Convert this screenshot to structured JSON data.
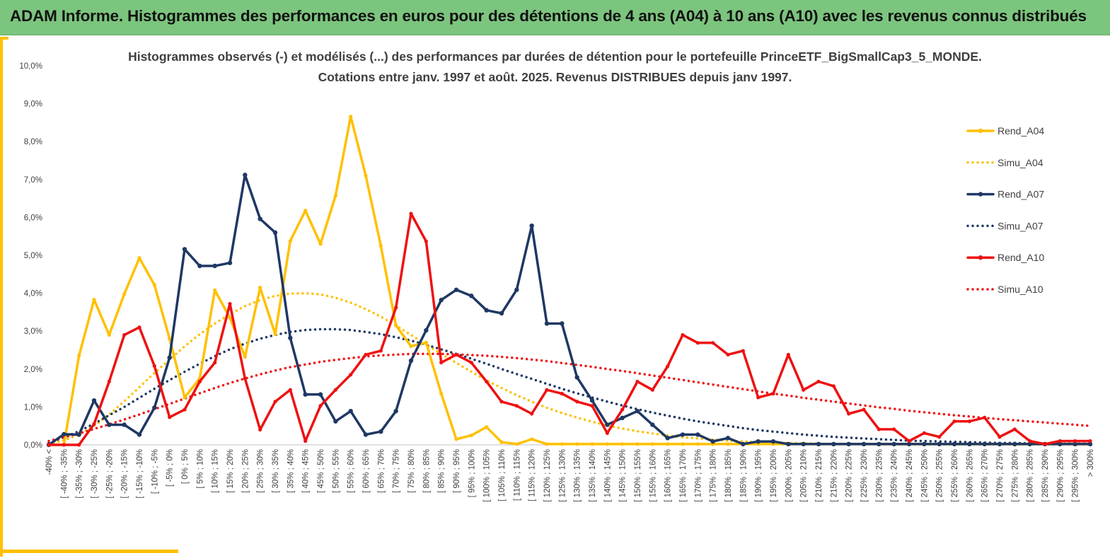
{
  "banner": {
    "title": "ADAM Informe. Histogrammes des performances en euros pour des détentions de 4 ans (A04) à 10 ans (A10) avec les revenus connus distribués"
  },
  "chart_data": {
    "type": "line",
    "title": "Histogrammes observés (-) et modélisés (...) des performances par durées de détention pour le portefeuille PrinceETF_BigSmallCap3_5_MONDE.",
    "subtitle": "Cotations entre janv. 1997 et août. 2025. Revenus DISTRIBUES depuis janv 1997.",
    "xlabel": "",
    "ylabel": "",
    "ylim": [
      0,
      10
    ],
    "y_ticks": [
      "0,0%",
      "1,0%",
      "2,0%",
      "3,0%",
      "4,0%",
      "5,0%",
      "6,0%",
      "7,0%",
      "8,0%",
      "9,0%",
      "10,0%"
    ],
    "grid": false,
    "legend_position": "right",
    "categories": [
      "-40% <",
      "[ -40% ; -35%",
      "[ -35% ; -30%",
      "[ -30% ; -25%",
      "[ -25% ; -20%",
      "[ -20% ; -15%",
      "[ -15% ; -10%",
      "[ -10% ; -5%",
      "[ -5% ; 0%",
      "[ 0% ; 5%",
      "[ 5% ; 10%",
      "[ 10% ; 15%",
      "[ 15% ; 20%",
      "[ 20% ; 25%",
      "[ 25% ; 30%",
      "[ 30% ; 35%",
      "[ 35% ; 40%",
      "[ 40% ; 45%",
      "[ 45% ; 50%",
      "[ 50% ; 55%",
      "[ 55% ; 60%",
      "[ 60% ; 65%",
      "[ 65% ; 70%",
      "[ 70% ; 75%",
      "[ 75% ; 80%",
      "[ 80% ; 85%",
      "[ 85% ; 90%",
      "[ 90% ; 95%",
      "[ 95% ; 100%",
      "[ 100% ; 105%",
      "[ 105% ; 110%",
      "[ 110% ; 115%",
      "[ 115% ; 120%",
      "[ 120% ; 125%",
      "[ 125% ; 130%",
      "[ 130% ; 135%",
      "[ 135% ; 140%",
      "[ 140% ; 145%",
      "[ 145% ; 150%",
      "[ 150% ; 155%",
      "[ 155% ; 160%",
      "[ 160% ; 165%",
      "[ 165% ; 170%",
      "[ 170% ; 175%",
      "[ 175% ; 180%",
      "[ 180% ; 185%",
      "[ 185% ; 190%",
      "[ 190% ; 195%",
      "[ 195% ; 200%",
      "[ 200% ; 205%",
      "[ 205% ; 210%",
      "[ 210% ; 215%",
      "[ 215% ; 220%",
      "[ 220% ; 225%",
      "[ 225% ; 230%",
      "[ 230% ; 235%",
      "[ 235% ; 240%",
      "[ 240% ; 245%",
      "[ 245% ; 250%",
      "[ 250% ; 255%",
      "[ 255% ; 260%",
      "[ 260% ; 265%",
      "[ 265% ; 270%",
      "[ 270% ; 275%",
      "[ 275% ; 280%",
      "[ 280% ; 285%",
      "[ 285% ; 290%",
      "[ 290% ; 295%",
      "[ 295% ; 300%",
      "> 300%"
    ],
    "series": [
      {
        "name": "Rend_A04",
        "style": "solid",
        "color": "#ffc000",
        "values": [
          0,
          0,
          2.35,
          3.83,
          2.9,
          3.98,
          4.93,
          4.22,
          2.8,
          1.25,
          1.75,
          4.08,
          3.35,
          2.32,
          4.15,
          2.92,
          5.38,
          6.18,
          5.3,
          6.57,
          8.66,
          7.1,
          5.25,
          3.15,
          2.6,
          2.7,
          1.35,
          0.15,
          0.25,
          0.47,
          0.07,
          0.02,
          0.15,
          0.02,
          0.02,
          0.02,
          0.02,
          0.02,
          0.02,
          0.02,
          0.02,
          0.02,
          0.02,
          0.02,
          0.02,
          0.02,
          0.02,
          0.02,
          0.02,
          0.02,
          0.02,
          0.02,
          0.02,
          0.02,
          0.02,
          0.02,
          0.02,
          0.02,
          0.02,
          0.02,
          0.02,
          0.02,
          0.02,
          0.02,
          0.02,
          0.02,
          0.02,
          0.02,
          0.02,
          0.02
        ]
      },
      {
        "name": "Simu_A04",
        "style": "dotted",
        "color": "#ffc000",
        "values": [
          0.02,
          0.12,
          0.27,
          0.5,
          0.8,
          1.15,
          1.52,
          1.9,
          2.25,
          2.6,
          2.92,
          3.2,
          3.45,
          3.66,
          3.82,
          3.93,
          3.99,
          4.0,
          3.97,
          3.88,
          3.75,
          3.58,
          3.38,
          3.15,
          2.9,
          2.65,
          2.4,
          2.16,
          1.93,
          1.7,
          1.5,
          1.31,
          1.14,
          0.98,
          0.84,
          0.72,
          0.61,
          0.51,
          0.43,
          0.36,
          0.3,
          0.25,
          0.2,
          0.17,
          0.14,
          0.11,
          0.09,
          0.07,
          0.06,
          0.05,
          0.04,
          0.03,
          0.02,
          0.02,
          0.02,
          0.01,
          0.01,
          0.01,
          0.01,
          0.01,
          0.01,
          0.01,
          0.01,
          0.01,
          0.01,
          0.01,
          0.01,
          0.01,
          0.01,
          0.01
        ]
      },
      {
        "name": "Rend_A07",
        "style": "solid",
        "color": "#1f3864",
        "values": [
          0,
          0.28,
          0.27,
          1.17,
          0.53,
          0.53,
          0.27,
          0.98,
          2.3,
          5.16,
          4.72,
          4.72,
          4.8,
          7.12,
          5.96,
          5.6,
          2.82,
          1.33,
          1.33,
          0.62,
          0.89,
          0.27,
          0.35,
          0.89,
          2.22,
          3.02,
          3.82,
          4.09,
          3.93,
          3.55,
          3.47,
          4.09,
          5.78,
          3.2,
          3.2,
          1.78,
          1.17,
          0.53,
          0.71,
          0.89,
          0.53,
          0.18,
          0.27,
          0.27,
          0.09,
          0.18,
          0.02,
          0.09,
          0.09,
          0.02,
          0.02,
          0.02,
          0.02,
          0.02,
          0.02,
          0.02,
          0.02,
          0.02,
          0.02,
          0.02,
          0.02,
          0.02,
          0.02,
          0.02,
          0.02,
          0.02,
          0.02,
          0.02,
          0.02,
          0.02
        ]
      },
      {
        "name": "Simu_A07",
        "style": "dotted",
        "color": "#1f3864",
        "values": [
          0.05,
          0.2,
          0.36,
          0.56,
          0.78,
          1.0,
          1.24,
          1.48,
          1.71,
          1.93,
          2.14,
          2.34,
          2.52,
          2.67,
          2.8,
          2.9,
          2.98,
          3.03,
          3.05,
          3.05,
          3.03,
          2.98,
          2.92,
          2.84,
          2.75,
          2.64,
          2.52,
          2.4,
          2.27,
          2.14,
          2.0,
          1.87,
          1.74,
          1.61,
          1.48,
          1.36,
          1.25,
          1.14,
          1.04,
          0.94,
          0.85,
          0.77,
          0.69,
          0.62,
          0.56,
          0.5,
          0.44,
          0.39,
          0.35,
          0.31,
          0.27,
          0.24,
          0.21,
          0.19,
          0.17,
          0.15,
          0.13,
          0.11,
          0.1,
          0.09,
          0.08,
          0.07,
          0.06,
          0.05,
          0.05,
          0.04,
          0.04,
          0.03,
          0.03,
          0.03
        ]
      },
      {
        "name": "Rend_A10",
        "style": "solid",
        "color": "#ee1111",
        "values": [
          0,
          0,
          0,
          0.55,
          1.67,
          2.9,
          3.1,
          2.08,
          0.73,
          0.93,
          1.67,
          2.17,
          3.72,
          1.75,
          0.4,
          1.14,
          1.45,
          0.1,
          1.03,
          1.45,
          1.85,
          2.38,
          2.48,
          3.62,
          6.1,
          5.37,
          2.17,
          2.38,
          2.17,
          1.67,
          1.14,
          1.03,
          0.82,
          1.45,
          1.35,
          1.14,
          1.03,
          0.31,
          0.93,
          1.67,
          1.45,
          2.07,
          2.9,
          2.69,
          2.69,
          2.38,
          2.48,
          1.25,
          1.35,
          2.38,
          1.45,
          1.67,
          1.55,
          0.82,
          0.93,
          0.41,
          0.41,
          0.1,
          0.31,
          0.21,
          0.62,
          0.62,
          0.72,
          0.21,
          0.41,
          0.1,
          0.02,
          0.1,
          0.1,
          0.1
        ]
      },
      {
        "name": "Simu_A10",
        "style": "dotted",
        "color": "#ee1111",
        "values": [
          0.1,
          0.2,
          0.3,
          0.42,
          0.54,
          0.67,
          0.8,
          0.94,
          1.08,
          1.22,
          1.36,
          1.5,
          1.63,
          1.75,
          1.86,
          1.96,
          2.05,
          2.12,
          2.19,
          2.24,
          2.29,
          2.33,
          2.36,
          2.38,
          2.4,
          2.4,
          2.4,
          2.39,
          2.37,
          2.35,
          2.32,
          2.29,
          2.25,
          2.21,
          2.16,
          2.11,
          2.06,
          2.0,
          1.95,
          1.89,
          1.83,
          1.77,
          1.71,
          1.65,
          1.59,
          1.53,
          1.47,
          1.41,
          1.35,
          1.3,
          1.24,
          1.19,
          1.14,
          1.09,
          1.04,
          0.99,
          0.95,
          0.9,
          0.86,
          0.82,
          0.78,
          0.75,
          0.71,
          0.68,
          0.65,
          0.62,
          0.59,
          0.56,
          0.53,
          0.5
        ]
      }
    ]
  }
}
